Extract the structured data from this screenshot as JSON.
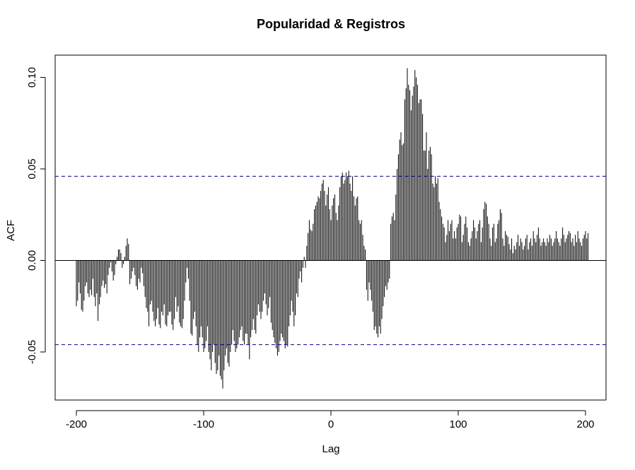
{
  "chart_data": {
    "type": "bar",
    "title": "Popularidad & Registros",
    "xlabel": "Lag",
    "ylabel": "ACF",
    "xlim": [
      -200,
      200
    ],
    "ylim": [
      -0.07,
      0.1
    ],
    "x_ticks": [
      -200,
      -100,
      0,
      100,
      200
    ],
    "x_tick_labels": [
      "-200",
      "-100",
      "0",
      "100",
      "200"
    ],
    "y_ticks": [
      -0.05,
      0.0,
      0.05,
      0.1
    ],
    "y_tick_labels": [
      "-0.05",
      "0.00",
      "0.05",
      "0.10"
    ],
    "ci_upper": 0.046,
    "ci_lower": -0.046,
    "ci_color": "#00008B",
    "bar_color": "#000000",
    "grid": false,
    "lag_start": -200,
    "lag_step": 1,
    "values": [
      -0.025,
      -0.022,
      -0.012,
      -0.018,
      -0.027,
      -0.028,
      -0.022,
      -0.014,
      -0.012,
      -0.018,
      -0.02,
      -0.016,
      -0.019,
      -0.01,
      -0.02,
      -0.025,
      -0.018,
      -0.033,
      -0.024,
      -0.02,
      -0.014,
      -0.011,
      -0.015,
      -0.013,
      -0.018,
      -0.008,
      -0.004,
      -0.001,
      -0.006,
      -0.011,
      -0.008,
      -0.002,
      0.002,
      0.006,
      0.006,
      0.004,
      -0.004,
      -0.002,
      0.002,
      0.008,
      0.012,
      0.009,
      -0.013,
      -0.01,
      -0.006,
      -0.004,
      -0.008,
      -0.014,
      -0.016,
      -0.01,
      -0.012,
      -0.004,
      -0.007,
      -0.014,
      -0.02,
      -0.026,
      -0.028,
      -0.036,
      -0.024,
      -0.022,
      -0.028,
      -0.033,
      -0.036,
      -0.032,
      -0.026,
      -0.035,
      -0.037,
      -0.028,
      -0.03,
      -0.024,
      -0.035,
      -0.036,
      -0.03,
      -0.028,
      -0.028,
      -0.035,
      -0.038,
      -0.032,
      -0.02,
      -0.028,
      -0.025,
      -0.034,
      -0.036,
      -0.037,
      -0.032,
      -0.022,
      -0.012,
      -0.004,
      -0.01,
      -0.022,
      -0.04,
      -0.041,
      -0.032,
      -0.028,
      -0.036,
      -0.046,
      -0.05,
      -0.042,
      -0.036,
      -0.042,
      -0.05,
      -0.048,
      -0.044,
      -0.036,
      -0.05,
      -0.054,
      -0.06,
      -0.05,
      -0.046,
      -0.056,
      -0.062,
      -0.06,
      -0.052,
      -0.063,
      -0.065,
      -0.07,
      -0.06,
      -0.052,
      -0.048,
      -0.056,
      -0.058,
      -0.05,
      -0.046,
      -0.038,
      -0.044,
      -0.05,
      -0.048,
      -0.046,
      -0.042,
      -0.038,
      -0.036,
      -0.044,
      -0.046,
      -0.04,
      -0.04,
      -0.046,
      -0.054,
      -0.042,
      -0.038,
      -0.032,
      -0.038,
      -0.04,
      -0.03,
      -0.024,
      -0.028,
      -0.032,
      -0.028,
      -0.022,
      -0.018,
      -0.024,
      -0.03,
      -0.026,
      -0.02,
      -0.034,
      -0.038,
      -0.042,
      -0.045,
      -0.048,
      -0.052,
      -0.05,
      -0.044,
      -0.04,
      -0.042,
      -0.044,
      -0.048,
      -0.046,
      -0.047,
      -0.036,
      -0.03,
      -0.022,
      -0.028,
      -0.036,
      -0.03,
      -0.018,
      -0.02,
      -0.01,
      -0.006,
      -0.012,
      -0.004,
      0.002,
      -0.004,
      0.008,
      0.015,
      0.022,
      0.017,
      0.016,
      0.02,
      0.028,
      0.03,
      0.032,
      0.035,
      0.034,
      0.038,
      0.042,
      0.044,
      0.038,
      0.03,
      0.036,
      0.04,
      0.028,
      0.022,
      0.03,
      0.034,
      0.036,
      0.026,
      0.022,
      0.03,
      0.04,
      0.046,
      0.048,
      0.042,
      0.044,
      0.048,
      0.046,
      0.049,
      0.042,
      0.038,
      0.046,
      0.035,
      0.03,
      0.034,
      0.035,
      0.022,
      0.02,
      0.022,
      0.014,
      0.008,
      0.006,
      -0.016,
      -0.022,
      -0.012,
      -0.016,
      -0.022,
      -0.028,
      -0.038,
      -0.036,
      -0.04,
      -0.042,
      -0.036,
      -0.04,
      -0.032,
      -0.025,
      -0.02,
      -0.014,
      -0.016,
      -0.012,
      -0.01,
      0.02,
      0.024,
      0.026,
      0.022,
      0.036,
      0.05,
      0.058,
      0.066,
      0.07,
      0.063,
      0.064,
      0.088,
      0.094,
      0.105,
      0.096,
      0.093,
      0.082,
      0.09,
      0.095,
      0.104,
      0.1,
      0.096,
      0.086,
      0.088,
      0.088,
      0.08,
      0.06,
      0.06,
      0.07,
      0.05,
      0.06,
      0.062,
      0.058,
      0.042,
      0.04,
      0.046,
      0.042,
      0.045,
      0.032,
      0.028,
      0.024,
      0.02,
      0.018,
      0.01,
      0.014,
      0.022,
      0.016,
      0.02,
      0.022,
      0.012,
      0.016,
      0.012,
      0.018,
      0.02,
      0.025,
      0.024,
      0.01,
      0.014,
      0.02,
      0.024,
      0.018,
      0.01,
      0.008,
      0.012,
      0.016,
      0.022,
      0.018,
      0.012,
      0.016,
      0.02,
      0.022,
      0.01,
      0.018,
      0.028,
      0.032,
      0.031,
      0.024,
      0.02,
      0.012,
      0.008,
      0.018,
      0.02,
      0.01,
      0.012,
      0.02,
      0.022,
      0.028,
      0.026,
      0.012,
      0.008,
      0.016,
      0.014,
      0.013,
      0.009,
      0.006,
      0.012,
      0.004,
      0.008,
      0.006,
      0.01,
      0.014,
      0.008,
      0.012,
      0.01,
      0.006,
      0.008,
      0.012,
      0.014,
      0.006,
      0.01,
      0.012,
      0.008,
      0.016,
      0.012,
      0.01,
      0.014,
      0.018,
      0.012,
      0.008,
      0.01,
      0.012,
      0.01,
      0.008,
      0.012,
      0.01,
      0.014,
      0.012,
      0.008,
      0.01,
      0.012,
      0.016,
      0.012,
      0.01,
      0.008,
      0.012,
      0.018,
      0.014,
      0.01,
      0.012,
      0.014,
      0.016,
      0.015,
      0.01,
      0.012,
      0.008,
      0.014,
      0.01,
      0.016,
      0.012,
      0.01,
      0.008,
      0.012,
      0.014,
      0.016,
      0.012,
      0.015
    ]
  }
}
